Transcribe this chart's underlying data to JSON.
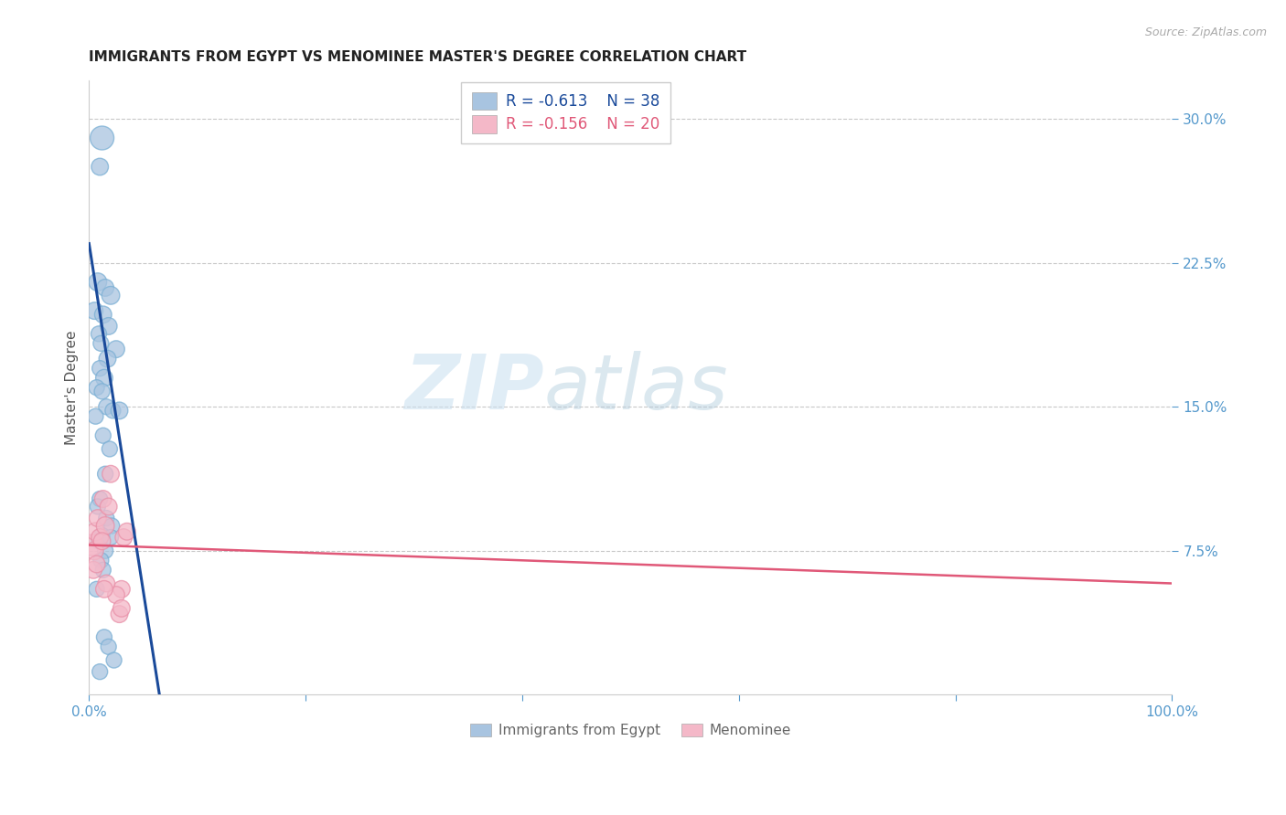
{
  "title": "IMMIGRANTS FROM EGYPT VS MENOMINEE MASTER'S DEGREE CORRELATION CHART",
  "source": "Source: ZipAtlas.com",
  "ylabel": "Master's Degree",
  "watermark": "ZIPatlas",
  "xlim": [
    0,
    100
  ],
  "ylim": [
    0,
    32
  ],
  "yticks": [
    7.5,
    15.0,
    22.5,
    30.0
  ],
  "blue_color": "#a8c4e0",
  "blue_edge_color": "#7aafd4",
  "blue_line_color": "#1a4a9a",
  "pink_color": "#f4b8c8",
  "pink_edge_color": "#e890a8",
  "pink_line_color": "#e05878",
  "legend_blue_R": "R = -0.613",
  "legend_blue_N": "N = 38",
  "legend_pink_R": "R = -0.156",
  "legend_pink_N": "N = 20",
  "blue_scatter_x": [
    1.2,
    1.0,
    0.8,
    1.5,
    2.0,
    0.5,
    1.3,
    1.8,
    0.9,
    1.1,
    2.5,
    1.7,
    1.0,
    1.4,
    0.7,
    1.2,
    1.6,
    2.2,
    0.6,
    1.3,
    1.9,
    1.5,
    2.8,
    1.0,
    0.8,
    1.6,
    2.1,
    1.2,
    0.9,
    1.5,
    1.1,
    2.0,
    1.3,
    0.7,
    1.4,
    1.8,
    2.3,
    1.0
  ],
  "blue_scatter_y": [
    29.0,
    27.5,
    21.5,
    21.2,
    20.8,
    20.0,
    19.8,
    19.2,
    18.8,
    18.3,
    18.0,
    17.5,
    17.0,
    16.5,
    16.0,
    15.8,
    15.0,
    14.8,
    14.5,
    13.5,
    12.8,
    11.5,
    14.8,
    10.2,
    9.8,
    9.2,
    8.8,
    8.3,
    8.0,
    7.5,
    7.0,
    8.2,
    6.5,
    5.5,
    3.0,
    2.5,
    1.8,
    1.2
  ],
  "blue_scatter_sizes": [
    350,
    180,
    200,
    180,
    200,
    180,
    180,
    180,
    150,
    150,
    180,
    180,
    150,
    180,
    150,
    150,
    150,
    150,
    150,
    150,
    150,
    150,
    180,
    150,
    150,
    150,
    150,
    150,
    150,
    150,
    150,
    150,
    150,
    150,
    150,
    150,
    150,
    150
  ],
  "pink_scatter_x": [
    0.3,
    0.6,
    0.8,
    0.5,
    1.0,
    1.5,
    1.2,
    0.4,
    0.7,
    2.0,
    1.3,
    1.8,
    3.2,
    3.5,
    3.0,
    2.5,
    1.6,
    1.4,
    2.8,
    3.0
  ],
  "pink_scatter_y": [
    7.8,
    8.5,
    9.2,
    7.5,
    8.2,
    8.8,
    8.0,
    6.5,
    6.8,
    11.5,
    10.2,
    9.8,
    8.2,
    8.5,
    5.5,
    5.2,
    5.8,
    5.5,
    4.2,
    4.5
  ],
  "pink_scatter_sizes": [
    280,
    200,
    180,
    200,
    180,
    200,
    180,
    180,
    180,
    180,
    180,
    180,
    180,
    180,
    180,
    180,
    180,
    180,
    180,
    180
  ],
  "blue_line_x0": 0.0,
  "blue_line_y0": 23.5,
  "blue_line_x1": 6.5,
  "blue_line_y1": 0.0,
  "pink_line_x0": 0.0,
  "pink_line_y0": 7.8,
  "pink_line_x1": 100.0,
  "pink_line_y1": 5.8,
  "title_fontsize": 11,
  "source_fontsize": 9,
  "ylabel_fontsize": 11,
  "axis_tick_color": "#5599cc",
  "grid_color": "#c8c8c8",
  "background_color": "#ffffff"
}
